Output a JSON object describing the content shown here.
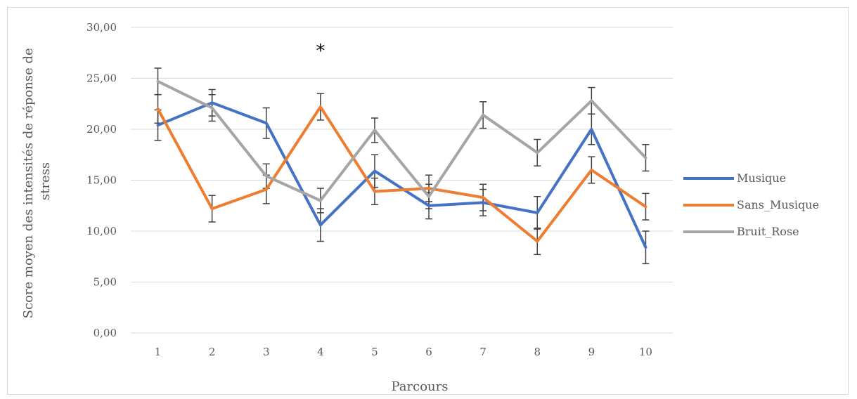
{
  "chart_data": {
    "type": "line",
    "title": "",
    "xlabel": "Parcours",
    "ylabel": "Score moyen des intensités de réponse de stress",
    "ylabel_lines": [
      "Score moyen des intensités de réponse de",
      "stress"
    ],
    "categories": [
      "1",
      "2",
      "3",
      "4",
      "5",
      "6",
      "7",
      "8",
      "9",
      "10"
    ],
    "ylim": [
      0,
      30
    ],
    "yticks": [
      0,
      5,
      10,
      15,
      20,
      25,
      30
    ],
    "ytick_labels": [
      "0,00",
      "5,00",
      "10,00",
      "15,00",
      "20,00",
      "25,00",
      "30,00"
    ],
    "grid": true,
    "legend_position": "right",
    "annotations": [
      {
        "text": "*",
        "category": "4",
        "y": 28.5
      }
    ],
    "series": [
      {
        "name": "Musique",
        "color": "#4472C4",
        "values": [
          20.4,
          22.6,
          20.6,
          10.6,
          15.9,
          12.5,
          12.8,
          11.8,
          20.0,
          8.4
        ],
        "errors": [
          1.5,
          1.3,
          1.5,
          1.6,
          1.6,
          1.3,
          1.3,
          1.6,
          1.5,
          1.6
        ]
      },
      {
        "name": "Sans_Musique",
        "color": "#ED7D31",
        "values": [
          22.0,
          12.2,
          14.1,
          22.2,
          13.9,
          14.2,
          13.3,
          9.0,
          16.0,
          12.4
        ],
        "errors": [
          1.4,
          1.3,
          1.4,
          1.3,
          1.3,
          1.3,
          1.3,
          1.3,
          1.3,
          1.3
        ]
      },
      {
        "name": "Bruit_Rose",
        "color": "#A5A5A5",
        "values": [
          24.7,
          22.1,
          15.4,
          13.0,
          19.9,
          13.4,
          21.4,
          17.7,
          22.8,
          17.2
        ],
        "errors": [
          1.3,
          1.3,
          1.2,
          1.2,
          1.2,
          1.2,
          1.3,
          1.3,
          1.3,
          1.3
        ]
      }
    ]
  }
}
